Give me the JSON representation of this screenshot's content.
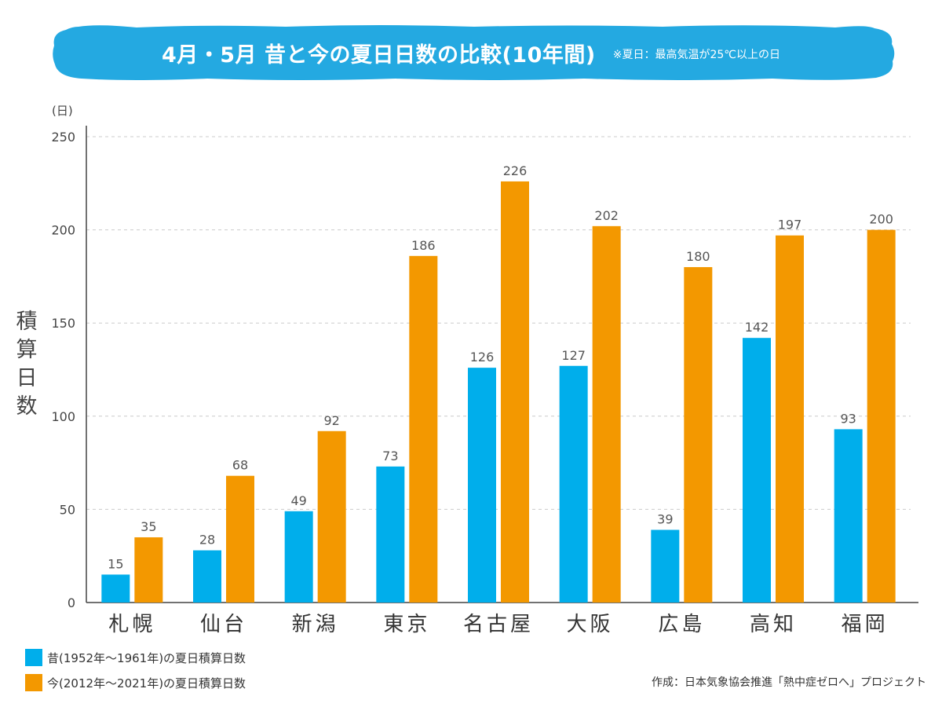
{
  "title": {
    "main": "4月・5月  昔と今の夏日日数の比較(10年間)",
    "note": "※夏日：最高気温が25℃以上の日"
  },
  "colors": {
    "banner": "#24a9e1",
    "past": "#00aeeb",
    "present": "#f39800",
    "grid": "#cccccc",
    "axis": "#444444"
  },
  "chart_data": {
    "type": "bar",
    "unit_label": "(日)",
    "ylabel": "積算日数",
    "ylim": [
      0,
      250
    ],
    "yticks": [
      0,
      50,
      100,
      150,
      200,
      250
    ],
    "categories": [
      "札幌",
      "仙台",
      "新潟",
      "東京",
      "名古屋",
      "大阪",
      "広島",
      "高知",
      "福岡"
    ],
    "series": [
      {
        "name": "昔(1952年〜1961年)の夏日積算日数",
        "color": "#00aeeb",
        "values": [
          15,
          28,
          49,
          73,
          126,
          127,
          39,
          142,
          93
        ]
      },
      {
        "name": "今(2012年〜2021年)の夏日積算日数",
        "color": "#f39800",
        "values": [
          35,
          68,
          92,
          186,
          226,
          202,
          180,
          197,
          200
        ]
      }
    ],
    "grid": true,
    "legend_position": "bottom-left"
  },
  "credit": "作成：日本気象協会推進「熱中症ゼロへ」プロジェクト"
}
